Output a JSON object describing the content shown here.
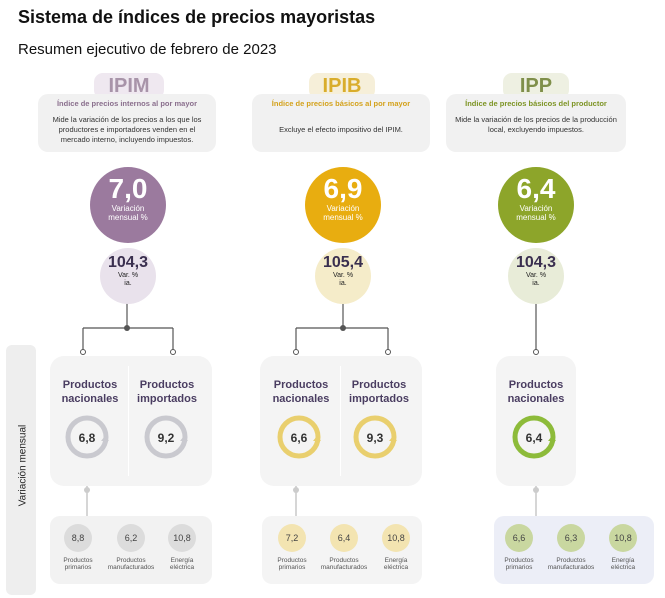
{
  "title": "Sistema de índices de precios mayoristas",
  "subtitle": "Resumen ejecutivo de febrero de 2023",
  "side_label": "Variación mensual",
  "indices": [
    {
      "name": "IPIM",
      "full_name": "Índice de precios internos al por mayor",
      "description": "Mide la variación de los precios a los que los productores e importadores venden en el mercado interno, incluyendo impuestos.",
      "monthly_value": "7,0",
      "monthly_label_1": "Variación",
      "monthly_label_2": "mensual %",
      "annual_value": "104,3",
      "annual_label_1": "Var. %",
      "annual_label_2": "ia.",
      "cards": [
        {
          "label_1": "Productos",
          "label_2": "nacionales",
          "value": "6,8"
        },
        {
          "label_1": "Productos",
          "label_2": "importados",
          "value": "9,2"
        }
      ],
      "breakdown": [
        {
          "value": "8,8",
          "label_1": "Productos",
          "label_2": "primarios"
        },
        {
          "value": "6,2",
          "label_1": "Productos",
          "label_2": "manufacturados"
        },
        {
          "value": "10,8",
          "label_1": "Energía",
          "label_2": "eléctrica"
        }
      ],
      "colors": {
        "main": "#9b7a9e",
        "tag_bg": "#efe8f0",
        "tag_text": "#a894a9",
        "head_text": "#8a6f8d",
        "annual_bg": "#e9e2ec",
        "ring": "#c9c9cf",
        "dot": "#dcdcdc",
        "panel": "#f2f2f2"
      }
    },
    {
      "name": "IPIB",
      "full_name": "Índice de precios básicos al por mayor",
      "description": "Excluye el efecto impositivo del IPIM.",
      "monthly_value": "6,9",
      "monthly_label_1": "Variación",
      "monthly_label_2": "mensual %",
      "annual_value": "105,4",
      "annual_label_1": "Var. %",
      "annual_label_2": "ia.",
      "cards": [
        {
          "label_1": "Productos",
          "label_2": "nacionales",
          "value": "6,6"
        },
        {
          "label_1": "Productos",
          "label_2": "importados",
          "value": "9,3"
        }
      ],
      "breakdown": [
        {
          "value": "7,2",
          "label_1": "Productos",
          "label_2": "primarios"
        },
        {
          "value": "6,4",
          "label_1": "Productos",
          "label_2": "manufacturados"
        },
        {
          "value": "10,8",
          "label_1": "Energía",
          "label_2": "eléctrica"
        }
      ],
      "colors": {
        "main": "#e8ad10",
        "tag_bg": "#f6efd9",
        "tag_text": "#d9ad2c",
        "head_text": "#d4a21c",
        "annual_bg": "#f5ecc9",
        "ring": "#e9cf6e",
        "dot": "#f3e4b1",
        "panel": "#f2f2f2"
      }
    },
    {
      "name": "IPP",
      "full_name": "Índice de precios básicos del productor",
      "description": "Mide la variación de los precios de la producción local, excluyendo impuestos.",
      "monthly_value": "6,4",
      "monthly_label_1": "Variación",
      "monthly_label_2": "mensual %",
      "annual_value": "104,3",
      "annual_label_1": "Var. %",
      "annual_label_2": "ia.",
      "cards": [
        {
          "label_1": "Productos",
          "label_2": "nacionales",
          "value": "6,4"
        }
      ],
      "breakdown": [
        {
          "value": "6,6",
          "label_1": "Productos",
          "label_2": "primarios"
        },
        {
          "value": "6,3",
          "label_1": "Productos",
          "label_2": "manufacturados"
        },
        {
          "value": "10,8",
          "label_1": "Energía",
          "label_2": "eléctrica"
        }
      ],
      "colors": {
        "main": "#8da52a",
        "tag_bg": "#eef0e2",
        "tag_text": "#7f8f4a",
        "head_text": "#7d9424",
        "annual_bg": "#e8ecd8",
        "ring": "#8dbb3a",
        "dot": "#c9d7a0",
        "panel": "#eceef7"
      }
    }
  ]
}
